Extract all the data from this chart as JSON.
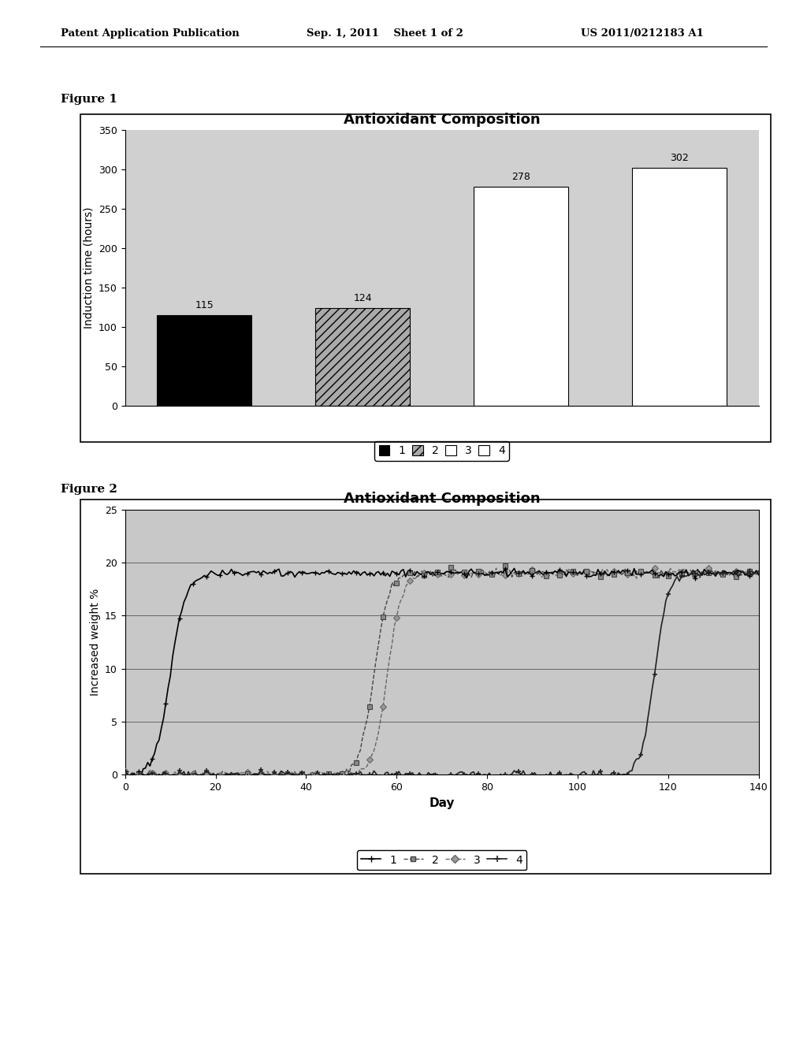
{
  "fig1": {
    "title": "Antioxidant Composition",
    "ylabel": "Induction time (hours)",
    "bar_values": [
      115,
      124,
      278,
      302
    ],
    "bar_colors": [
      "#000000",
      "#aaaaaa",
      "#ffffff",
      "#ffffff"
    ],
    "bar_hatches": [
      "",
      "///",
      "",
      ""
    ],
    "bar_edgecolors": [
      "#000000",
      "#000000",
      "#000000",
      "#000000"
    ],
    "ylim": [
      0,
      350
    ],
    "yticks": [
      0,
      50,
      100,
      150,
      200,
      250,
      300,
      350
    ],
    "legend_labels": [
      "1",
      "2",
      "3",
      "4"
    ],
    "legend_colors": [
      "#000000",
      "#aaaaaa",
      "#ffffff",
      "#ffffff"
    ],
    "legend_hatches": [
      "",
      "///",
      "",
      ""
    ],
    "figure_label": "Figure 1",
    "bg_color": "#d0d0d0"
  },
  "fig2": {
    "title": "Antioxidant Composition",
    "ylabel": "Increased weight %",
    "xlabel": "Day",
    "xlim": [
      0,
      140
    ],
    "ylim": [
      0,
      25
    ],
    "yticks": [
      0,
      5,
      10,
      15,
      20,
      25
    ],
    "xticks": [
      0,
      20,
      40,
      60,
      80,
      100,
      120,
      140
    ],
    "legend_labels": [
      "1",
      "2",
      "3",
      "4"
    ],
    "figure_label": "Figure 2",
    "bg_color": "#c8c8c8"
  },
  "header_left": "Patent Application Publication",
  "header_mid": "Sep. 1, 2011    Sheet 1 of 2",
  "header_right": "US 2011/0212183 A1",
  "bg_color": "#ffffff"
}
